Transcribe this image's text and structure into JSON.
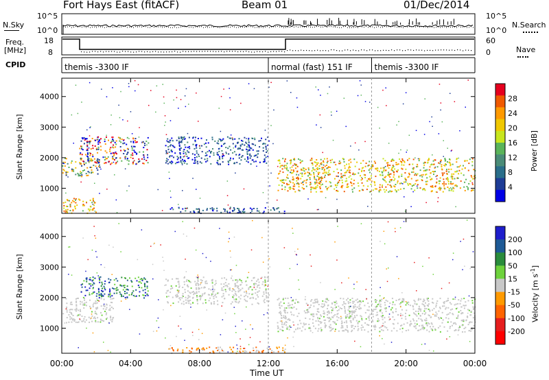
{
  "header": {
    "station": "Fort Hays East (fitACF)",
    "beam": "Beam 01",
    "date": "01/Dec/2014"
  },
  "panels": {
    "nsky": {
      "label": "N.Sky",
      "left_ticks": [
        "10^5",
        "10^0"
      ],
      "right_label": "N.Search",
      "right_ticks": [
        "10^5",
        "10^0"
      ]
    },
    "freq": {
      "label_line1": "Freq.",
      "label_line2": "[MHz]",
      "left_ticks": [
        "18",
        "8"
      ],
      "right_label": "Nave",
      "right_ticks": [
        "60",
        "0"
      ]
    },
    "cpid": {
      "label": "CPID",
      "entries": [
        "themis -3300 IF",
        "normal (fast) 151 IF",
        "themis -3300 IF"
      ],
      "entry_start_hours": [
        0,
        12,
        18
      ]
    }
  },
  "colorbars": {
    "power": {
      "label": "Power [dB]",
      "ticks": [
        "28",
        "24",
        "20",
        "16",
        "12",
        "8",
        "4"
      ],
      "colors": [
        "#e6001e",
        "#f05a00",
        "#ff9a00",
        "#f0c800",
        "#c8e61e",
        "#5ab45a",
        "#4a8c78",
        "#2a6e8a",
        "#1e3c96",
        "#0000e6"
      ]
    },
    "velocity": {
      "label": "Velocity [m s",
      "label_sup": "-1",
      "label_end": "]",
      "ticks": [
        "200",
        "100",
        "50",
        "15",
        "-15",
        "-50",
        "-100",
        "-200"
      ],
      "colors": [
        "#1e1ecc",
        "#1e5a96",
        "#2a8c3c",
        "#6ed23c",
        "#c8c8c8",
        "#ff9a00",
        "#ff6400",
        "#e61e1e",
        "#ff0000"
      ]
    }
  },
  "chart_data": [
    {
      "type": "heatmap",
      "title": "Power",
      "ylabel": "Slant Range [km]",
      "xlabel": "Time UT",
      "x_ticks": [
        "00:00",
        "04:00",
        "08:00",
        "12:00",
        "16:00",
        "20:00",
        "00:00"
      ],
      "y_ticks": [
        1000,
        2000,
        3000,
        4000
      ],
      "ylim": [
        180,
        4600
      ],
      "xlim_hours": [
        0,
        24
      ],
      "colorbar_range_db": [
        0,
        30
      ],
      "bands": [
        {
          "start_h": 0.0,
          "end_h": 2.2,
          "range_lo": 1400,
          "range_hi": 2000,
          "level": "mid"
        },
        {
          "start_h": 1.0,
          "end_h": 5.0,
          "range_lo": 1800,
          "range_hi": 2700,
          "level": "mixed"
        },
        {
          "start_h": 6.0,
          "end_h": 12.0,
          "range_lo": 1800,
          "range_hi": 2700,
          "level": "low"
        },
        {
          "start_h": 12.5,
          "end_h": 24.0,
          "range_lo": 900,
          "range_hi": 2000,
          "level": "high"
        },
        {
          "start_h": 0.0,
          "end_h": 2.0,
          "range_lo": 200,
          "range_hi": 700,
          "level": "high"
        },
        {
          "start_h": 6.0,
          "end_h": 13.0,
          "range_lo": 200,
          "range_hi": 400,
          "level": "low"
        }
      ]
    },
    {
      "type": "heatmap",
      "title": "Velocity",
      "ylabel": "Slant Range [km]",
      "xlabel": "Time UT",
      "x_ticks": [
        "00:00",
        "04:00",
        "08:00",
        "12:00",
        "16:00",
        "20:00",
        "00:00"
      ],
      "y_ticks": [
        1000,
        2000,
        3000,
        4000
      ],
      "ylim": [
        180,
        4600
      ],
      "xlim_hours": [
        0,
        24
      ],
      "colorbar_range_ms": [
        -200,
        200
      ],
      "bands": [
        {
          "start_h": 0.0,
          "end_h": 3.0,
          "range_lo": 1200,
          "range_hi": 2000,
          "level": "ground"
        },
        {
          "start_h": 1.0,
          "end_h": 5.0,
          "range_lo": 2000,
          "range_hi": 2700,
          "level": "positive"
        },
        {
          "start_h": 6.0,
          "end_h": 12.0,
          "range_lo": 1800,
          "range_hi": 2700,
          "level": "ground"
        },
        {
          "start_h": 12.5,
          "end_h": 24.0,
          "range_lo": 900,
          "range_hi": 2000,
          "level": "ground"
        },
        {
          "start_h": 6.0,
          "end_h": 13.0,
          "range_lo": 200,
          "range_hi": 400,
          "level": "negative"
        }
      ]
    }
  ]
}
